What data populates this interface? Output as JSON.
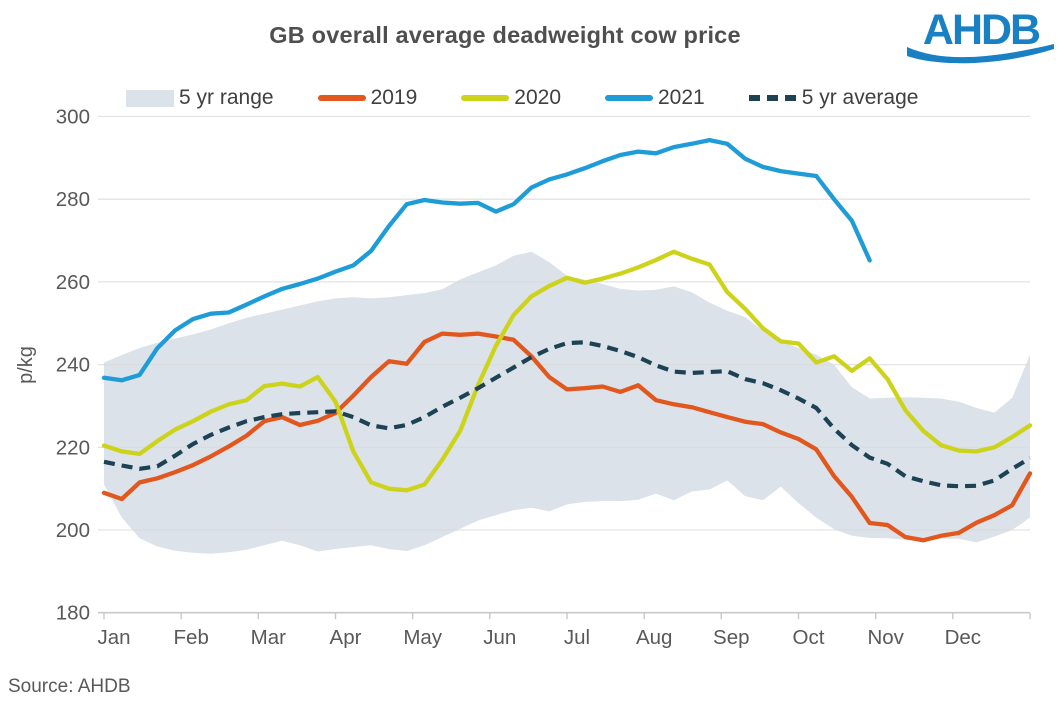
{
  "title": "GB overall average deadweight cow price",
  "logo": {
    "text": "AHDB",
    "color": "#1a80c4"
  },
  "source_note": "Source: AHDB",
  "legend": [
    {
      "label": "5 yr range",
      "type": "band",
      "color": "#dbe2e9"
    },
    {
      "label": "2019",
      "type": "line",
      "color": "#e2571d"
    },
    {
      "label": "2020",
      "type": "line",
      "color": "#cdd31a"
    },
    {
      "label": "2021",
      "type": "line",
      "color": "#1d9cd8"
    },
    {
      "label": "5 yr average",
      "type": "dashed",
      "color": "#1d4253"
    }
  ],
  "colors": {
    "grid": "#d9d9d9",
    "axis_line": "#c8c8c8",
    "axis_text": "#595959",
    "title_text": "#4f4f4f",
    "legend_text": "#404040",
    "band_fill": "#dbe2e9",
    "series_2019": "#e2571d",
    "series_2020": "#cdd31a",
    "series_2021": "#1d9cd8",
    "series_avg": "#1d4253",
    "logo_blue": "#1a80c4"
  },
  "chart_data": {
    "type": "line",
    "title": "GB overall average deadweight cow price",
    "ylabel": "p/kg",
    "ylim": [
      180,
      300
    ],
    "y_ticks": [
      300,
      280,
      260,
      240,
      220,
      200,
      180
    ],
    "x_tick_labels": [
      "Jan",
      "Feb",
      "Mar",
      "Apr",
      "May",
      "Jun",
      "Jul",
      "Aug",
      "Sep",
      "Oct",
      "Nov",
      "Dec"
    ],
    "x_unit": "week (53 weekly points spanning Jan-Dec; 2021 series ends mid-November)",
    "grid": "horizontal only",
    "legend_position": "top",
    "band": {
      "name": "5 yr range",
      "top": [
        240.5,
        242.3,
        244,
        245.3,
        246.3,
        247.3,
        248.5,
        250,
        251.3,
        252.3,
        253.3,
        254.3,
        255.3,
        256,
        256.3,
        256,
        256.3,
        256.8,
        257.3,
        258.2,
        260.6,
        262.3,
        264,
        266.3,
        267.3,
        264.8,
        261.5,
        260.5,
        259.5,
        258.3,
        257.9,
        258.1,
        258.9,
        257.5,
        255,
        253,
        251.5,
        248.2,
        245.8,
        244,
        242.4,
        240,
        234.5,
        231.8,
        232,
        232.1,
        232,
        231.8,
        231,
        229.5,
        228.4,
        232,
        242.4
      ],
      "bottom": [
        211,
        203,
        198,
        196,
        195,
        194.5,
        194.3,
        194.6,
        195.2,
        196.3,
        197.4,
        196.3,
        194.8,
        195.4,
        195.9,
        196.3,
        195.4,
        194.9,
        196.3,
        198.3,
        200.3,
        202.3,
        203.6,
        204.8,
        205.4,
        204.5,
        206.2,
        206.8,
        207,
        207,
        207.3,
        208.8,
        207.2,
        209.3,
        209.8,
        212,
        208.2,
        207.2,
        210.5,
        206.5,
        203,
        200.2,
        198.6,
        198.1,
        198,
        197.6,
        197.2,
        197.9,
        197.9,
        197,
        198.4,
        200,
        203
      ]
    },
    "series": [
      {
        "name": "2019",
        "style": "solid",
        "color": "#e2571d",
        "values": [
          209,
          207.5,
          211.5,
          212.5,
          214,
          215.7,
          217.8,
          220.2,
          222.8,
          226.3,
          227.3,
          225.4,
          226.4,
          228.3,
          232.5,
          237,
          240.8,
          240.2,
          245.5,
          247.5,
          247.2,
          247.5,
          246.8,
          246,
          242,
          237,
          234,
          234.3,
          234.7,
          233.4,
          235,
          231.4,
          230.4,
          229.7,
          228.5,
          227.3,
          226.2,
          225.6,
          223.6,
          222,
          219.5,
          213,
          208,
          201.7,
          201.2,
          198.3,
          197.5,
          198.6,
          199.3,
          201.8,
          203.6,
          206,
          213.7
        ]
      },
      {
        "name": "2020",
        "style": "solid",
        "color": "#cdd31a",
        "values": [
          220.4,
          219,
          218.4,
          221.5,
          224.3,
          226.3,
          228.6,
          230.4,
          231.4,
          234.8,
          235.4,
          234.7,
          237,
          231,
          219,
          211.5,
          210,
          209.6,
          211,
          217,
          224,
          235,
          244.5,
          252,
          256.5,
          259,
          261,
          259.8,
          260.8,
          262,
          263.5,
          265.3,
          267.3,
          265.6,
          264.2,
          257.5,
          253.5,
          248.8,
          245.6,
          245.1,
          240.5,
          242,
          238.5,
          241.5,
          236.5,
          229,
          224,
          220.5,
          219.2,
          219,
          220,
          222.5,
          225.3
        ]
      },
      {
        "name": "2021",
        "style": "solid",
        "color": "#1d9cd8",
        "values": [
          236.8,
          236.2,
          237.5,
          244,
          248.3,
          251,
          252.3,
          252.6,
          254.5,
          256.5,
          258.3,
          259.5,
          260.8,
          262.5,
          264,
          267.5,
          273.5,
          278.8,
          279.8,
          279.2,
          278.9,
          279.1,
          277,
          278.8,
          282.8,
          284.8,
          286,
          287.5,
          289.2,
          290.7,
          291.5,
          291.1,
          292.6,
          293.4,
          294.3,
          293.4,
          289.8,
          287.8,
          286.8,
          286.2,
          285.6,
          280,
          274.8,
          265.2
        ]
      },
      {
        "name": "5 yr average",
        "style": "dashed",
        "color": "#1d4253",
        "values": [
          216.5,
          215.6,
          214.8,
          215.4,
          218,
          220.8,
          223,
          224.8,
          226.3,
          227.3,
          228,
          228.3,
          228.5,
          228.7,
          227.3,
          225.3,
          224.6,
          225.4,
          227.3,
          229.8,
          232,
          234.3,
          236.8,
          239.3,
          241.8,
          243.8,
          245.2,
          245.4,
          244.5,
          243.3,
          241.8,
          239.8,
          238.3,
          238,
          238.2,
          238.4,
          236.5,
          235.5,
          233.8,
          231.8,
          229.5,
          224.5,
          220.5,
          217.5,
          216,
          213,
          211.8,
          210.8,
          210.6,
          210.7,
          212,
          214.8,
          217.4
        ]
      }
    ]
  }
}
